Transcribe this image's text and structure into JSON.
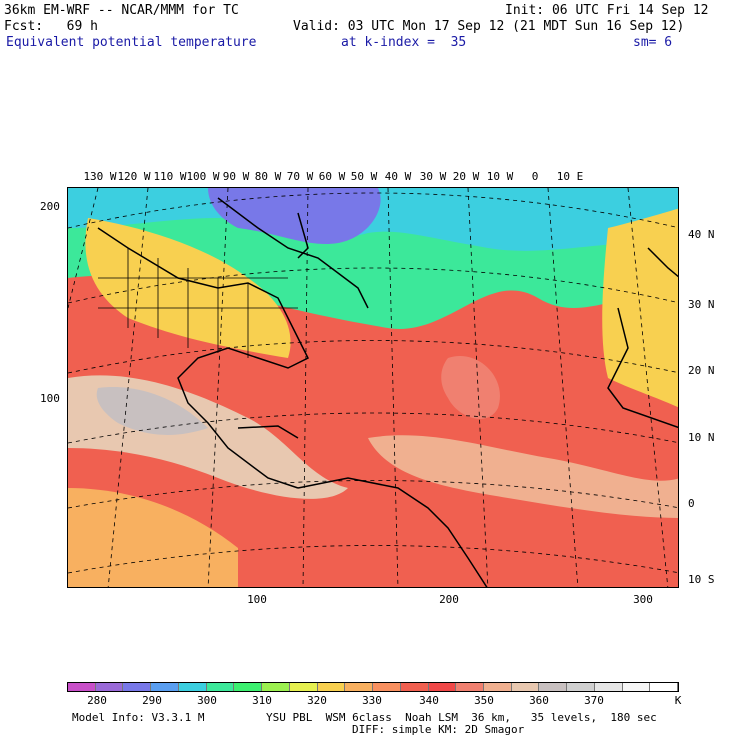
{
  "header": {
    "model_line": "36km EM-WRF -- NCAR/MMM for TC",
    "init_line": "Init: 06 UTC Fri 14 Sep 12",
    "fcst_line": "Fcst:   69 h",
    "valid_line": "Valid: 03 UTC Mon 17 Sep 12 (21 MDT Sun 16 Sep 12)",
    "field_name": "Equivalent potential temperature",
    "level_info": "at k-index =  35",
    "smoothing": "sm= 6"
  },
  "map": {
    "lon_labels": [
      "130 W",
      "120 W",
      "110 W",
      "100 W",
      "90 W",
      "80 W",
      "70 W",
      "60 W",
      "50 W",
      "40 W",
      "30 W",
      "20 W",
      "10 W",
      "0",
      "10 E"
    ],
    "lat_labels": [
      "40 N",
      "30 N",
      "20 N",
      "10 N",
      "0",
      "10 S"
    ],
    "grid_y_ticks": [
      "200",
      "100"
    ],
    "grid_x_ticks": [
      "100",
      "200",
      "300"
    ]
  },
  "colorbar": {
    "labels": [
      "280",
      "290",
      "300",
      "310",
      "320",
      "330",
      "340",
      "350",
      "360",
      "370",
      "K"
    ],
    "colors": [
      "#c84fc8",
      "#9a6ad8",
      "#7878e8",
      "#5a9ef0",
      "#3ccfe0",
      "#3ce89a",
      "#3cf070",
      "#9cf050",
      "#e6f050",
      "#f8d050",
      "#f8b060",
      "#f89060",
      "#f06050",
      "#f04848",
      "#f08070",
      "#f0b090",
      "#e8c8b0",
      "#c8c0c0",
      "#d0d0d0",
      "#e6e6e6",
      "#f6f6f6",
      "#ffffff"
    ]
  },
  "footer": {
    "model_info": "Model Info: V3.3.1 M",
    "physics": "YSU PBL  WSM 6class  Noah LSM  36 km,   35 levels,  180 sec",
    "diffusion": "DIFF: simple KM: 2D Smagor"
  }
}
